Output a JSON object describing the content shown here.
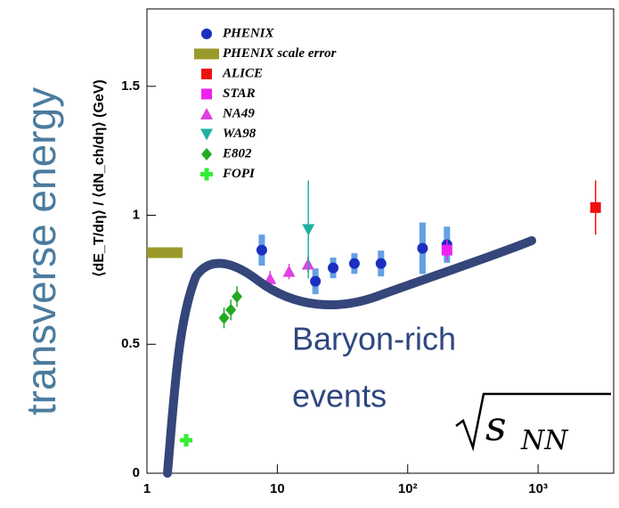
{
  "chart_data": {
    "type": "scatter",
    "y_label": "⟨dE_T/dη⟩ / ⟨dN_ch/dη⟩ (GeV)",
    "log_x": true,
    "xlim": [
      1,
      3800
    ],
    "xticks": [
      1,
      10,
      {
        "value": 100,
        "label": "10²"
      },
      {
        "value": 1000,
        "label": "10³"
      }
    ],
    "ylim": [
      0,
      1.8
    ],
    "yticks": [
      0,
      0.5,
      1,
      1.5
    ],
    "legend": "upper left",
    "series": [
      {
        "name": "PHENIX",
        "color": "#1a2fbf",
        "marker": "circle",
        "error_style": "band",
        "x": [
          7.6,
          19.6,
          26.8,
          39,
          62.4,
          130,
          200
        ],
        "values": [
          0.865,
          0.744,
          0.796,
          0.813,
          0.813,
          0.872,
          0.886
        ],
        "errors": [
          0.06,
          0.05,
          0.04,
          0.04,
          0.05,
          0.1,
          0.07
        ]
      },
      {
        "name": "PHENIX scale error",
        "color": "#9a9a2a",
        "marker": "band",
        "x": [
          1.37
        ],
        "values": [
          0.855
        ]
      },
      {
        "name": "ALICE",
        "color": "#ee1111",
        "marker": "square",
        "x": [
          2760
        ],
        "values": [
          1.03
        ],
        "errors": [
          0.105
        ]
      },
      {
        "name": "STAR",
        "color": "#ee22ee",
        "marker": "square",
        "x": [
          200
        ],
        "values": [
          0.865
        ],
        "errors": [
          0.04
        ]
      },
      {
        "name": "NA49",
        "color": "#e040e0",
        "marker": "triangle",
        "x": [
          8.8,
          12.3,
          17.2
        ],
        "values": [
          0.754,
          0.782,
          0.81
        ],
        "errors": [
          0.03,
          0.03,
          0.03
        ]
      },
      {
        "name": "WA98",
        "color": "#20b0a0",
        "marker": "triangle-down",
        "x": [
          17.3
        ],
        "values": [
          0.945
        ],
        "errors": [
          0.19
        ]
      },
      {
        "name": "E802",
        "color": "#22aa22",
        "marker": "diamond",
        "x": [
          3.9,
          4.4,
          4.9
        ],
        "values": [
          0.602,
          0.633,
          0.685
        ],
        "errors": [
          0.04,
          0.04,
          0.04
        ]
      },
      {
        "name": "FOPI",
        "color": "#33ee33",
        "marker": "cross",
        "x": [
          2.0
        ],
        "values": [
          0.128
        ],
        "errors": [
          0.02
        ]
      }
    ],
    "annotations": {
      "side_label": "transverse energy",
      "curve_label": [
        "Baryon-rich",
        "events"
      ],
      "energy_base": "s",
      "energy_subscript": "NN"
    }
  }
}
